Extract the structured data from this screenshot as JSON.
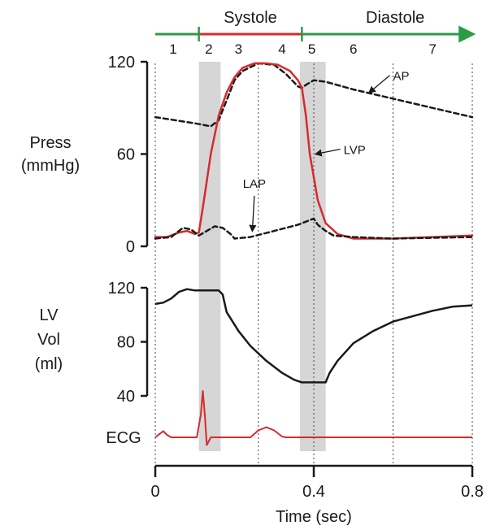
{
  "chart_data": {
    "type": "line",
    "title": "",
    "phases": {
      "systole_label": "Systole",
      "diastole_label": "Diastole",
      "systole_range": [
        0.11,
        0.37
      ],
      "numbers": [
        {
          "label": "1",
          "t": 0.045
        },
        {
          "label": "2",
          "t": 0.135
        },
        {
          "label": "3",
          "t": 0.21
        },
        {
          "label": "4",
          "t": 0.32
        },
        {
          "label": "5",
          "t": 0.395
        },
        {
          "label": "6",
          "t": 0.5
        },
        {
          "label": "7",
          "t": 0.7
        }
      ],
      "shaded_bands": [
        [
          0.11,
          0.165
        ],
        [
          0.365,
          0.43
        ]
      ],
      "dotted_lines": [
        0,
        0.26,
        0.4,
        0.6,
        0.8
      ]
    },
    "x_axis": {
      "label": "Time (sec)",
      "range": [
        0,
        0.8
      ],
      "ticks": [
        {
          "value": 0,
          "label": "0"
        },
        {
          "value": 0.4,
          "label": "0.4"
        },
        {
          "value": 0.8,
          "label": "0.8"
        }
      ]
    },
    "pressure_panel": {
      "ylabel_lines": [
        "Press",
        "(mmHg)"
      ],
      "ylim": [
        0,
        120
      ],
      "ticks": [
        {
          "value": 0,
          "label": "0"
        },
        {
          "value": 60,
          "label": "60"
        },
        {
          "value": 120,
          "label": "120"
        }
      ],
      "series": [
        {
          "name": "AP",
          "color": "#1a1a1a",
          "style": "dashed",
          "points": [
            [
              0,
              84
            ],
            [
              0.05,
              82
            ],
            [
              0.1,
              80
            ],
            [
              0.14,
              78
            ],
            [
              0.16,
              82
            ],
            [
              0.18,
              95
            ],
            [
              0.2,
              108
            ],
            [
              0.22,
              114
            ],
            [
              0.26,
              119
            ],
            [
              0.3,
              118
            ],
            [
              0.33,
              112
            ],
            [
              0.36,
              104
            ],
            [
              0.37,
              103
            ],
            [
              0.38,
              105
            ],
            [
              0.4,
              108
            ],
            [
              0.43,
              107
            ],
            [
              0.5,
              102
            ],
            [
              0.6,
              96
            ],
            [
              0.7,
              90
            ],
            [
              0.8,
              84
            ]
          ]
        },
        {
          "name": "LVP",
          "color": "#d62b2b",
          "style": "solid",
          "points": [
            [
              0,
              6
            ],
            [
              0.03,
              6
            ],
            [
              0.06,
              9
            ],
            [
              0.08,
              10
            ],
            [
              0.1,
              8
            ],
            [
              0.11,
              9
            ],
            [
              0.12,
              25
            ],
            [
              0.14,
              60
            ],
            [
              0.16,
              85
            ],
            [
              0.18,
              100
            ],
            [
              0.2,
              110
            ],
            [
              0.22,
              116
            ],
            [
              0.25,
              119
            ],
            [
              0.28,
              119
            ],
            [
              0.31,
              118
            ],
            [
              0.34,
              114
            ],
            [
              0.36,
              108
            ],
            [
              0.37,
              103
            ],
            [
              0.38,
              85
            ],
            [
              0.39,
              60
            ],
            [
              0.41,
              30
            ],
            [
              0.43,
              15
            ],
            [
              0.46,
              8
            ],
            [
              0.5,
              5
            ],
            [
              0.6,
              5
            ],
            [
              0.7,
              6
            ],
            [
              0.8,
              7
            ]
          ]
        },
        {
          "name": "LAP",
          "color": "#1a1a1a",
          "style": "dashed",
          "points": [
            [
              0,
              5
            ],
            [
              0.04,
              6
            ],
            [
              0.07,
              12
            ],
            [
              0.09,
              11
            ],
            [
              0.11,
              7
            ],
            [
              0.13,
              10
            ],
            [
              0.15,
              13
            ],
            [
              0.17,
              12
            ],
            [
              0.19,
              8
            ],
            [
              0.2,
              5
            ],
            [
              0.24,
              6
            ],
            [
              0.3,
              10
            ],
            [
              0.36,
              14
            ],
            [
              0.4,
              18
            ],
            [
              0.41,
              14
            ],
            [
              0.43,
              10
            ],
            [
              0.45,
              7
            ],
            [
              0.5,
              6
            ],
            [
              0.6,
              5
            ],
            [
              0.8,
              6
            ]
          ]
        }
      ],
      "annotations": [
        {
          "text": "AP",
          "t": 0.6,
          "value": 108,
          "arrow_to": [
            0.54,
            100
          ]
        },
        {
          "text": "LVP",
          "t": 0.475,
          "value": 60,
          "arrow_to": [
            0.405,
            60
          ]
        },
        {
          "text": "LAP",
          "t": 0.25,
          "value": 36,
          "arrow_to": [
            0.245,
            10
          ]
        }
      ]
    },
    "volume_panel": {
      "ylabel_lines": [
        "LV",
        "Vol",
        "(ml)"
      ],
      "ylim": [
        40,
        120
      ],
      "ticks": [
        {
          "value": 40,
          "label": "40"
        },
        {
          "value": 80,
          "label": "80"
        },
        {
          "value": 120,
          "label": "120"
        }
      ],
      "series": [
        {
          "name": "LV Vol",
          "color": "#1a1a1a",
          "style": "solid",
          "points": [
            [
              0,
              108
            ],
            [
              0.02,
              109
            ],
            [
              0.04,
              112
            ],
            [
              0.06,
              117
            ],
            [
              0.08,
              119
            ],
            [
              0.1,
              118
            ],
            [
              0.16,
              118
            ],
            [
              0.17,
              115
            ],
            [
              0.18,
              102
            ],
            [
              0.21,
              88
            ],
            [
              0.24,
              77
            ],
            [
              0.28,
              66
            ],
            [
              0.32,
              57
            ],
            [
              0.35,
              52
            ],
            [
              0.37,
              50
            ],
            [
              0.43,
              50
            ],
            [
              0.44,
              57
            ],
            [
              0.46,
              66
            ],
            [
              0.5,
              79
            ],
            [
              0.55,
              88
            ],
            [
              0.6,
              95
            ],
            [
              0.65,
              99
            ],
            [
              0.7,
              103
            ],
            [
              0.75,
              106
            ],
            [
              0.8,
              107
            ]
          ]
        }
      ]
    },
    "ecg_panel": {
      "label": "ECG",
      "color": "#d62b2b",
      "points": [
        [
          0,
          0
        ],
        [
          0.01,
          0.4
        ],
        [
          0.02,
          0.8
        ],
        [
          0.03,
          0.3
        ],
        [
          0.04,
          0
        ],
        [
          0.105,
          0
        ],
        [
          0.115,
          3
        ],
        [
          0.12,
          6
        ],
        [
          0.125,
          3
        ],
        [
          0.13,
          -1
        ],
        [
          0.14,
          0
        ],
        [
          0.24,
          0
        ],
        [
          0.26,
          0.9
        ],
        [
          0.28,
          1.3
        ],
        [
          0.3,
          0.9
        ],
        [
          0.32,
          0.1
        ],
        [
          0.33,
          0
        ],
        [
          0.8,
          0
        ]
      ]
    },
    "grid": false,
    "legend": "none (direct labels)"
  },
  "colors": {
    "accent_red": "#d62b2b",
    "phase_green": "#2d9a44",
    "band_gray": "#cfcfcf"
  }
}
